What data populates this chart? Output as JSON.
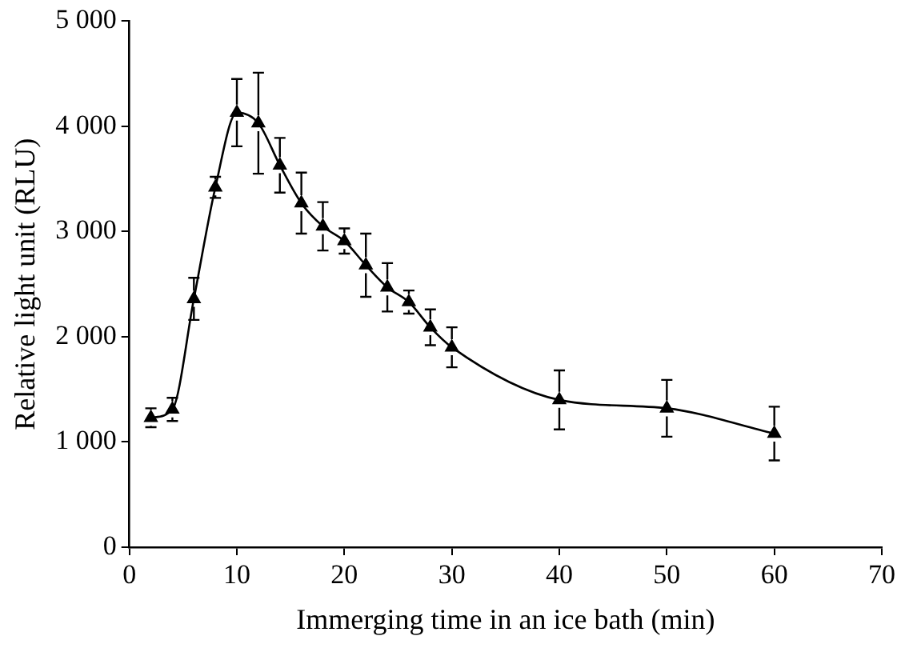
{
  "chart_data": {
    "type": "line",
    "xlabel": "Immerging time in an ice bath (min)",
    "ylabel": "Relative light unit (RLU)",
    "x": [
      2,
      4,
      6,
      8,
      10,
      12,
      14,
      16,
      18,
      20,
      22,
      24,
      26,
      28,
      30,
      40,
      50,
      60
    ],
    "series": [
      {
        "color": "#000000",
        "values": [
          1230,
          1310,
          2360,
          3420,
          4130,
          4030,
          3630,
          3270,
          3050,
          2910,
          2680,
          2470,
          2330,
          2090,
          1900,
          1400,
          1320,
          1080
        ],
        "errors": [
          90,
          110,
          200,
          100,
          320,
          480,
          260,
          290,
          230,
          120,
          300,
          230,
          110,
          170,
          190,
          280,
          270,
          255
        ]
      }
    ],
    "xlim": [
      0,
      70
    ],
    "xticks": [
      0,
      10,
      20,
      30,
      40,
      50,
      60,
      70
    ],
    "ylim": [
      0,
      5000
    ],
    "yticks": [
      0,
      {
        "value": 1000,
        "label": "1 000"
      },
      {
        "value": 2000,
        "label": "2 000"
      },
      {
        "value": 3000,
        "label": "3 000"
      },
      {
        "value": 4000,
        "label": "4 000"
      },
      {
        "value": 5000,
        "label": "5 000"
      }
    ],
    "grid": false,
    "legend": false,
    "marker": "triangle",
    "line_style": "solid"
  }
}
